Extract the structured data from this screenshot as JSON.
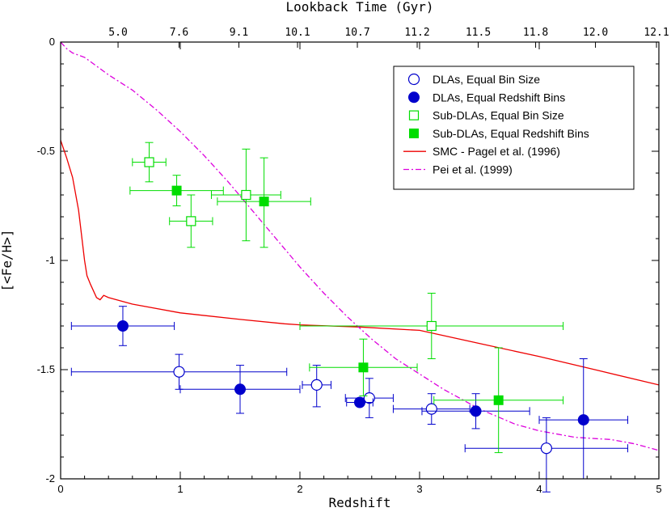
{
  "chart_data": {
    "type": "scatter",
    "title": "",
    "xlabel": "Redshift",
    "ylabel": "[<Fe/H>]",
    "top_axis_label": "Lookback Time (Gyr)",
    "xlim": [
      0,
      5
    ],
    "ylim": [
      -2,
      0
    ],
    "x_ticks": [
      0,
      1,
      2,
      3,
      4,
      5
    ],
    "x_tick_labels": [
      "0",
      "1",
      "2",
      "3",
      "4",
      "5"
    ],
    "y_ticks": [
      0,
      -0.5,
      -1,
      -1.5,
      -2
    ],
    "y_tick_labels": [
      "0",
      "-0.5",
      "-1",
      "-1.5",
      "-2"
    ],
    "top_ticks": [
      {
        "z": 0.48,
        "label": "5.0"
      },
      {
        "z": 0.99,
        "label": "7.6"
      },
      {
        "z": 1.49,
        "label": "9.1"
      },
      {
        "z": 1.98,
        "label": "10.1"
      },
      {
        "z": 2.48,
        "label": "10.7"
      },
      {
        "z": 2.98,
        "label": "11.2"
      },
      {
        "z": 3.49,
        "label": "11.5"
      },
      {
        "z": 3.97,
        "label": "11.8"
      },
      {
        "z": 4.47,
        "label": "12.0"
      },
      {
        "z": 4.98,
        "label": "12.1"
      }
    ],
    "legend_position": "top-right",
    "series": [
      {
        "name": "DLAs, Equal Bin Size",
        "marker": "circle-open",
        "color": "#0000cc",
        "points": [
          {
            "x": 0.99,
            "y": -1.51,
            "xerr": [
              0.9,
              0.9
            ],
            "yerr": [
              0.08,
              0.08
            ]
          },
          {
            "x": 2.14,
            "y": -1.57,
            "xerr": [
              0.12,
              0.12
            ],
            "yerr": [
              0.1,
              0.09
            ]
          },
          {
            "x": 2.58,
            "y": -1.63,
            "xerr": [
              0.2,
              0.2
            ],
            "yerr": [
              0.09,
              0.09
            ]
          },
          {
            "x": 3.1,
            "y": -1.68,
            "xerr": [
              0.32,
              0.32
            ],
            "yerr": [
              0.07,
              0.07
            ]
          },
          {
            "x": 4.06,
            "y": -1.86,
            "xerr": [
              0.68,
              0.68
            ],
            "yerr": [
              0.2,
              0.14
            ]
          }
        ]
      },
      {
        "name": "DLAs, Equal Redshift Bins",
        "marker": "circle-filled",
        "color": "#0000cc",
        "points": [
          {
            "x": 0.52,
            "y": -1.3,
            "xerr": [
              0.43,
              0.43
            ],
            "yerr": [
              0.09,
              0.09
            ]
          },
          {
            "x": 1.5,
            "y": -1.59,
            "xerr": [
              0.5,
              0.5
            ],
            "yerr": [
              0.11,
              0.11
            ]
          },
          {
            "x": 2.5,
            "y": -1.65,
            "xerr": [
              0.11,
              0.11
            ],
            "yerr": [
              0.0,
              0.0
            ]
          },
          {
            "x": 3.47,
            "y": -1.69,
            "xerr": [
              0.45,
              0.45
            ],
            "yerr": [
              0.08,
              0.08
            ]
          },
          {
            "x": 4.37,
            "y": -1.73,
            "xerr": [
              0.37,
              0.37
            ],
            "yerr": [
              0.27,
              0.28
            ]
          }
        ]
      },
      {
        "name": "Sub-DLAs, Equal Bin Size",
        "marker": "square-open",
        "color": "#00dd00",
        "points": [
          {
            "x": 0.74,
            "y": -0.55,
            "xerr": [
              0.14,
              0.14
            ],
            "yerr": [
              0.09,
              0.09
            ]
          },
          {
            "x": 1.09,
            "y": -0.82,
            "xerr": [
              0.18,
              0.18
            ],
            "yerr": [
              0.12,
              0.12
            ]
          },
          {
            "x": 1.55,
            "y": -0.7,
            "xerr": [
              0.29,
              0.29
            ],
            "yerr": [
              0.21,
              0.21
            ]
          },
          {
            "x": 3.1,
            "y": -1.3,
            "xerr": [
              1.1,
              1.1
            ],
            "yerr": [
              0.15,
              0.15
            ]
          }
        ]
      },
      {
        "name": "Sub-DLAs, Equal Redshift Bins",
        "marker": "square-filled",
        "color": "#00dd00",
        "points": [
          {
            "x": 0.97,
            "y": -0.68,
            "xerr": [
              0.39,
              0.39
            ],
            "yerr": [
              0.07,
              0.07
            ]
          },
          {
            "x": 1.7,
            "y": -0.73,
            "xerr": [
              0.39,
              0.39
            ],
            "yerr": [
              0.21,
              0.2
            ]
          },
          {
            "x": 2.53,
            "y": -1.49,
            "xerr": [
              0.45,
              0.45
            ],
            "yerr": [
              0.13,
              0.13
            ]
          },
          {
            "x": 3.66,
            "y": -1.64,
            "xerr": [
              0.54,
              0.54
            ],
            "yerr": [
              0.24,
              0.24
            ]
          }
        ]
      }
    ],
    "lines": [
      {
        "name": "SMC - Pagel et al. (1996)",
        "style": "solid",
        "color": "#ee0000",
        "x": [
          0.0,
          0.05,
          0.1,
          0.15,
          0.2,
          0.22,
          0.25,
          0.3,
          0.33,
          0.36,
          0.4,
          0.6,
          1.0,
          1.5,
          1.87,
          2.0,
          2.5,
          3.0,
          3.5,
          4.0,
          4.5,
          5.0
        ],
        "y": [
          -0.45,
          -0.53,
          -0.62,
          -0.77,
          -1.0,
          -1.07,
          -1.11,
          -1.17,
          -1.18,
          -1.16,
          -1.17,
          -1.2,
          -1.24,
          -1.27,
          -1.29,
          -1.295,
          -1.305,
          -1.32,
          -1.38,
          -1.44,
          -1.505,
          -1.57
        ]
      },
      {
        "name": "Pei et al. (1999)",
        "style": "dashdot",
        "color": "#dd00dd",
        "x": [
          0.0,
          0.05,
          0.1,
          0.2,
          0.3,
          0.4,
          0.6,
          0.8,
          1.0,
          1.2,
          1.4,
          1.6,
          1.8,
          2.0,
          2.2,
          2.4,
          2.6,
          2.8,
          3.0,
          3.2,
          3.5,
          3.8,
          4.0,
          4.3,
          4.6,
          4.8,
          5.0
        ],
        "y": [
          0.0,
          -0.03,
          -0.05,
          -0.07,
          -0.11,
          -0.15,
          -0.22,
          -0.31,
          -0.41,
          -0.52,
          -0.64,
          -0.77,
          -0.9,
          -1.03,
          -1.15,
          -1.26,
          -1.36,
          -1.45,
          -1.52,
          -1.59,
          -1.68,
          -1.75,
          -1.78,
          -1.81,
          -1.82,
          -1.84,
          -1.87
        ]
      }
    ]
  }
}
